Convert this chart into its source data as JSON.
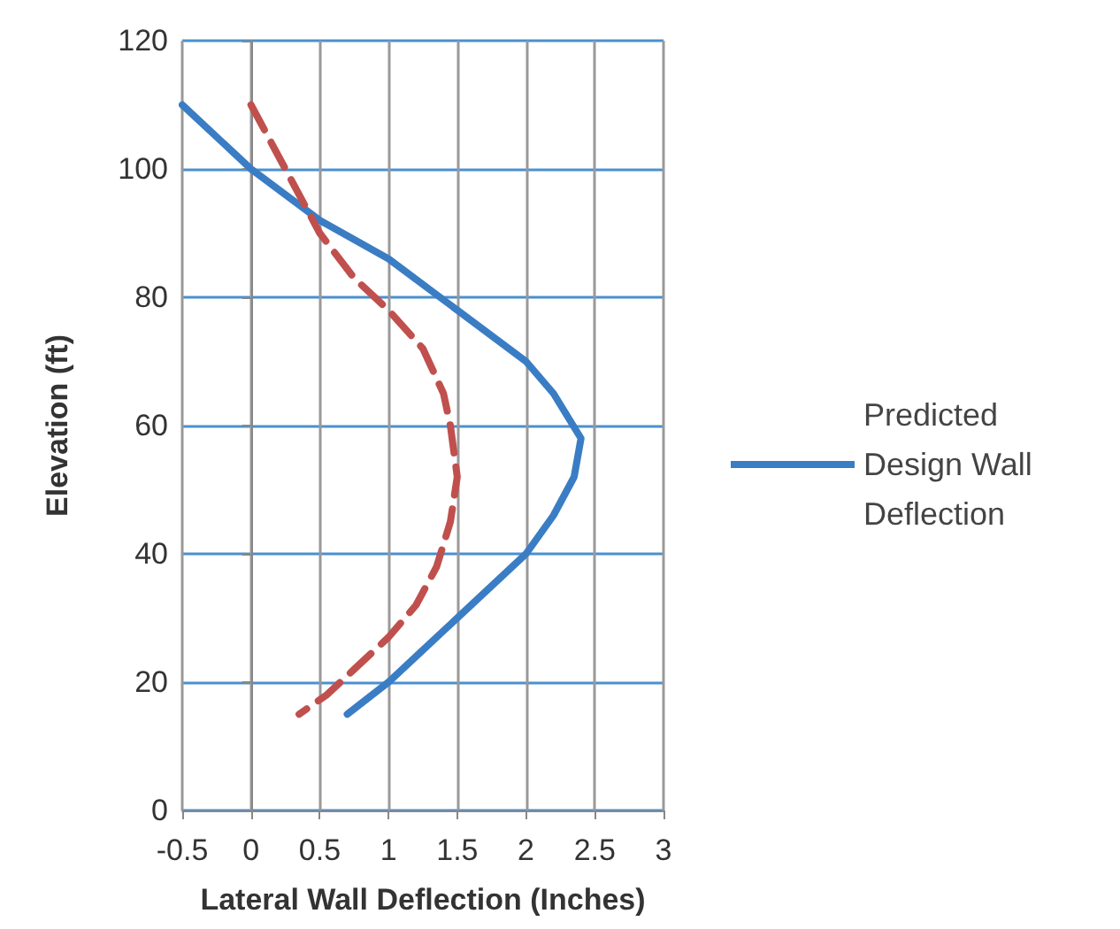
{
  "chart_data": {
    "type": "line",
    "xlabel": "Lateral Wall Deflection (Inches)",
    "ylabel": "Elevation (ft)",
    "xlim": [
      -0.5,
      3
    ],
    "xticks": [
      -0.5,
      0,
      0.5,
      1,
      1.5,
      2,
      2.5,
      3
    ],
    "ylim": [
      0,
      120
    ],
    "yticks": [
      0,
      20,
      40,
      60,
      80,
      100,
      120
    ],
    "grid": true,
    "legend": "right",
    "marker": "none",
    "series": [
      {
        "name": "Predicted Design Wall Deflection",
        "color": "#3a7dc4",
        "line_style": "solid",
        "x": [
          -0.5,
          0,
          0.5,
          1,
          1.5,
          2,
          2.2,
          2.4,
          2.35,
          2.2,
          2,
          1.75,
          1.5,
          1.25,
          1,
          0.7
        ],
        "values": [
          110,
          100,
          92,
          86,
          78,
          70,
          65,
          58,
          52,
          46,
          40,
          35,
          30,
          25,
          20,
          15
        ]
      },
      {
        "color": "#c0504d",
        "line_style": "dashed",
        "x": [
          0,
          0.25,
          0.5,
          0.75,
          1,
          1.25,
          1.4,
          1.45,
          1.5,
          1.45,
          1.35,
          1.2,
          1,
          0.75,
          0.55,
          0.35
        ],
        "values": [
          110,
          100,
          90,
          83,
          78,
          72,
          65,
          60,
          52,
          45,
          38,
          32,
          27,
          22,
          18,
          15
        ]
      }
    ]
  }
}
